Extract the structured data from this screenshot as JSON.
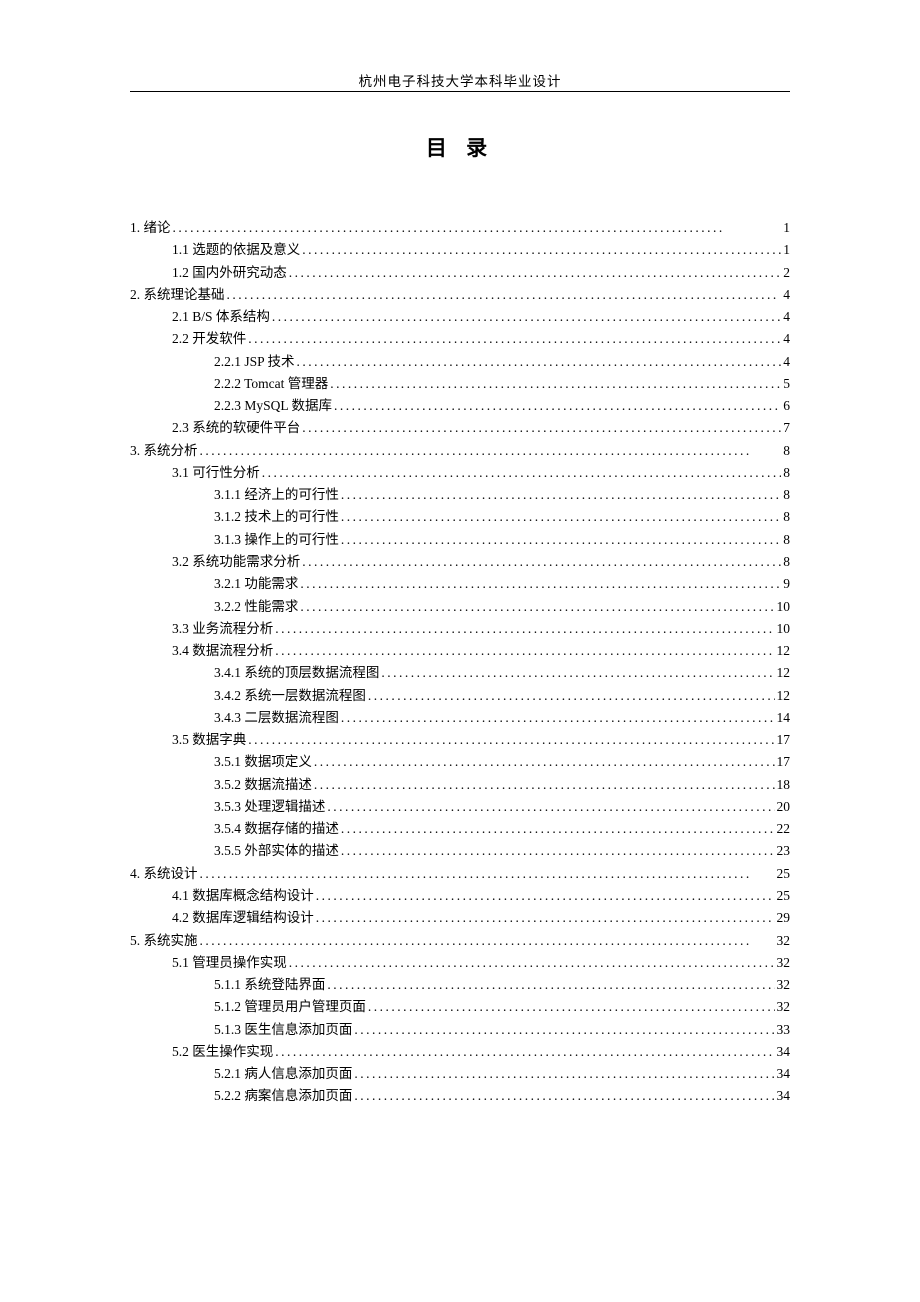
{
  "header": "杭州电子科技大学本科毕业设计",
  "title": "目 录",
  "dots": "..............................................................................................",
  "entries": [
    {
      "label": "1. 绪论",
      "page": "1",
      "level": 0
    },
    {
      "label": "1.1 选题的依据及意义",
      "page": "1",
      "level": 1
    },
    {
      "label": "1.2 国内外研究动态",
      "page": "2",
      "level": 1
    },
    {
      "label": "2. 系统理论基础",
      "page": "4",
      "level": 0
    },
    {
      "label": "2.1 B/S 体系结构 ",
      "page": "4",
      "level": 1
    },
    {
      "label": "2.2 开发软件",
      "page": "4",
      "level": 1
    },
    {
      "label": "2.2.1 JSP 技术 ",
      "page": "4",
      "level": 2
    },
    {
      "label": "2.2.2 Tomcat 管理器 ",
      "page": "5",
      "level": 2
    },
    {
      "label": "2.2.3 MySQL 数据库",
      "page": "6",
      "level": 2
    },
    {
      "label": "2.3 系统的软硬件平台",
      "page": "7",
      "level": 1
    },
    {
      "label": "3. 系统分析",
      "page": "8",
      "level": 0
    },
    {
      "label": "3.1 可行性分析",
      "page": "8",
      "level": 1
    },
    {
      "label": "3.1.1 经济上的可行性",
      "page": "8",
      "level": 2
    },
    {
      "label": "3.1.2 技术上的可行性",
      "page": "8",
      "level": 2
    },
    {
      "label": "3.1.3 操作上的可行性",
      "page": "8",
      "level": 2
    },
    {
      "label": "3.2 系统功能需求分析",
      "page": "8",
      "level": 1
    },
    {
      "label": "3.2.1 功能需求",
      "page": "9",
      "level": 2
    },
    {
      "label": "3.2.2 性能需求",
      "page": "10",
      "level": 2
    },
    {
      "label": "3.3 业务流程分析",
      "page": "10",
      "level": 1
    },
    {
      "label": "3.4 数据流程分析",
      "page": "12",
      "level": 1
    },
    {
      "label": "3.4.1 系统的顶层数据流程图 ",
      "page": "12",
      "level": 2
    },
    {
      "label": "3.4.2 系统一层数据流程图",
      "page": "12",
      "level": 2
    },
    {
      "label": "3.4.3 二层数据流程图",
      "page": "14",
      "level": 2
    },
    {
      "label": "3.5 数据字典",
      "page": "17",
      "level": 1
    },
    {
      "label": "3.5.1 数据项定义",
      "page": "17",
      "level": 2
    },
    {
      "label": "3.5.2 数据流描述",
      "page": "18",
      "level": 2
    },
    {
      "label": "3.5.3 处理逻辑描述",
      "page": "20",
      "level": 2
    },
    {
      "label": "3.5.4 数据存储的描述",
      "page": "22",
      "level": 2
    },
    {
      "label": "3.5.5 外部实体的描述",
      "page": "23",
      "level": 2
    },
    {
      "label": "4. 系统设计",
      "page": "25",
      "level": 0
    },
    {
      "label": "4.1 数据库概念结构设计 ",
      "page": "25",
      "level": 1
    },
    {
      "label": "4.2 数据库逻辑结构设计",
      "page": "29",
      "level": 1
    },
    {
      "label": "5. 系统实施",
      "page": "32",
      "level": 0
    },
    {
      "label": "5.1 管理员操作实现",
      "page": "32",
      "level": 1
    },
    {
      "label": "5.1.1 系统登陆界面",
      "page": "32",
      "level": 2
    },
    {
      "label": "5.1.2 管理员用户管理页面",
      "page": "32",
      "level": 2
    },
    {
      "label": "5.1.3 医生信息添加页面",
      "page": "33",
      "level": 2
    },
    {
      "label": "5.2  医生操作实现",
      "page": "34",
      "level": 1
    },
    {
      "label": "5.2.1 病人信息添加页面",
      "page": "34",
      "level": 2
    },
    {
      "label": "5.2.2 病案信息添加页面",
      "page": "34",
      "level": 2
    }
  ]
}
